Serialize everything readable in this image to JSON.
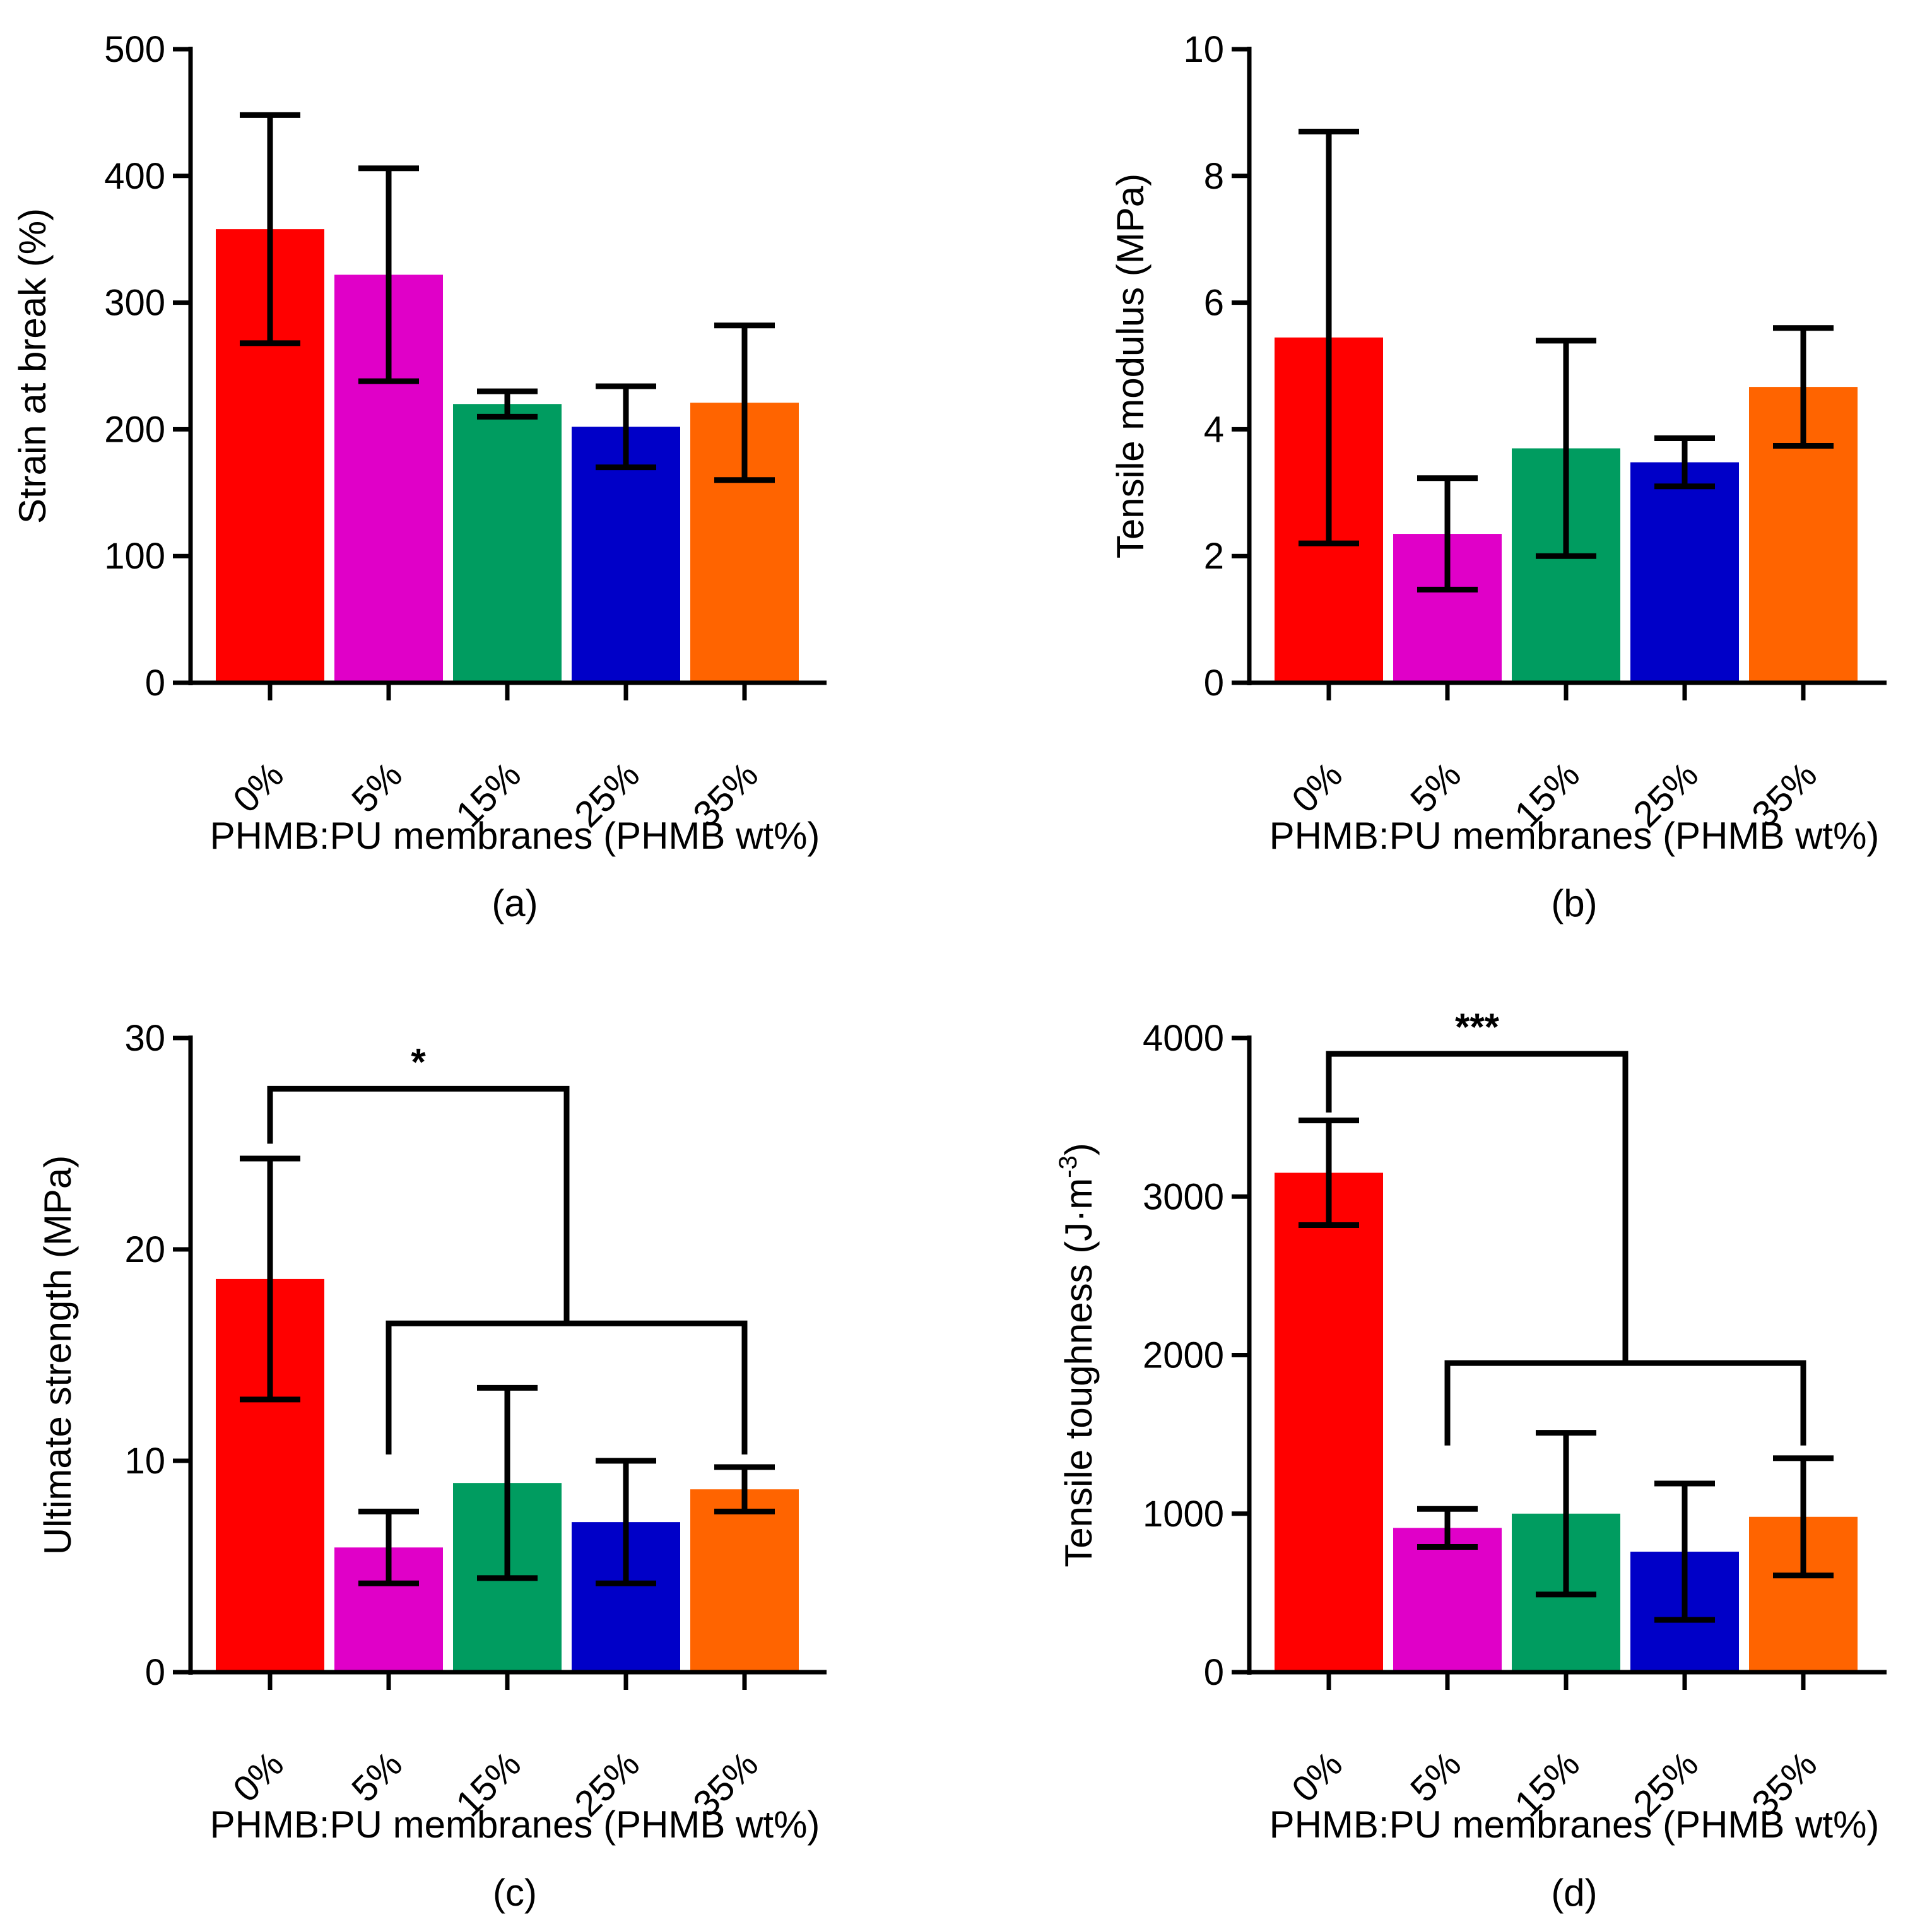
{
  "chart_data": [
    {
      "panel": "(a)",
      "type": "bar",
      "categories": [
        "0%",
        "5%",
        "15%",
        "25%",
        "35%"
      ],
      "values": [
        358,
        322,
        220,
        202,
        221
      ],
      "errors": [
        90,
        84,
        10,
        32,
        61
      ],
      "colors": [
        "#ff0000",
        "#e000c8",
        "#009c60",
        "#0000c8",
        "#ff6400"
      ],
      "ylabel": "Strain at break (%)",
      "xlabel": "PHMB:PU membranes (PHMB wt%)",
      "ylim": [
        0,
        500
      ],
      "yticks": [
        0,
        100,
        200,
        300,
        400,
        500
      ],
      "significance": null
    },
    {
      "panel": "(b)",
      "type": "bar",
      "categories": [
        "0%",
        "5%",
        "15%",
        "25%",
        "35%"
      ],
      "values": [
        5.45,
        2.35,
        3.7,
        3.48,
        4.67
      ],
      "errors": [
        3.25,
        0.88,
        1.7,
        0.38,
        0.93
      ],
      "colors": [
        "#ff0000",
        "#e000c8",
        "#009c60",
        "#0000c8",
        "#ff6400"
      ],
      "ylabel": "Tensile modulus  (MPa)",
      "xlabel": "PHMB:PU membranes (PHMB wt%)",
      "ylim": [
        0,
        10
      ],
      "yticks": [
        0,
        2,
        4,
        6,
        8,
        10
      ],
      "significance": null
    },
    {
      "panel": "(c)",
      "type": "bar",
      "categories": [
        "0%",
        "5%",
        "15%",
        "25%",
        "35%"
      ],
      "values": [
        18.6,
        5.9,
        8.95,
        7.1,
        8.65
      ],
      "errors": [
        5.7,
        1.7,
        4.5,
        2.9,
        1.05
      ],
      "colors": [
        "#ff0000",
        "#e000c8",
        "#009c60",
        "#0000c8",
        "#ff6400"
      ],
      "ylabel": "Ultimate strength (MPa)",
      "xlabel": "PHMB:PU membranes (PHMB wt%)",
      "ylim": [
        0,
        30
      ],
      "yticks": [
        0,
        10,
        20,
        30
      ],
      "significance": {
        "label": "*",
        "from_index": 0,
        "group_from_index": 1,
        "group_to_index": 4,
        "upper_level": 27.6,
        "lower_level": 16.5,
        "left_drop_to": 25.0,
        "group_drop_to": 10.3
      }
    },
    {
      "panel": "(d)",
      "type": "bar",
      "categories": [
        "0%",
        "5%",
        "15%",
        "25%",
        "35%"
      ],
      "values": [
        3150,
        910,
        1000,
        760,
        980
      ],
      "errors": [
        330,
        120,
        510,
        430,
        370
      ],
      "colors": [
        "#ff0000",
        "#e000c8",
        "#009c60",
        "#0000c8",
        "#ff6400"
      ],
      "ylabel": "Tensile toughness (J·m-3)",
      "ylabel_main": "Tensile toughness (J·m",
      "ylabel_sup": "-3",
      "ylabel_close": ")",
      "xlabel": "PHMB:PU membranes (PHMB wt%)",
      "ylim": [
        0,
        4000
      ],
      "yticks": [
        0,
        1000,
        2000,
        3000,
        4000
      ],
      "significance": {
        "label": "***",
        "from_index": 0,
        "group_from_index": 1,
        "group_to_index": 4,
        "upper_level": 3900,
        "lower_level": 1950,
        "left_drop_to": 3530,
        "group_drop_to": 1430
      }
    }
  ]
}
